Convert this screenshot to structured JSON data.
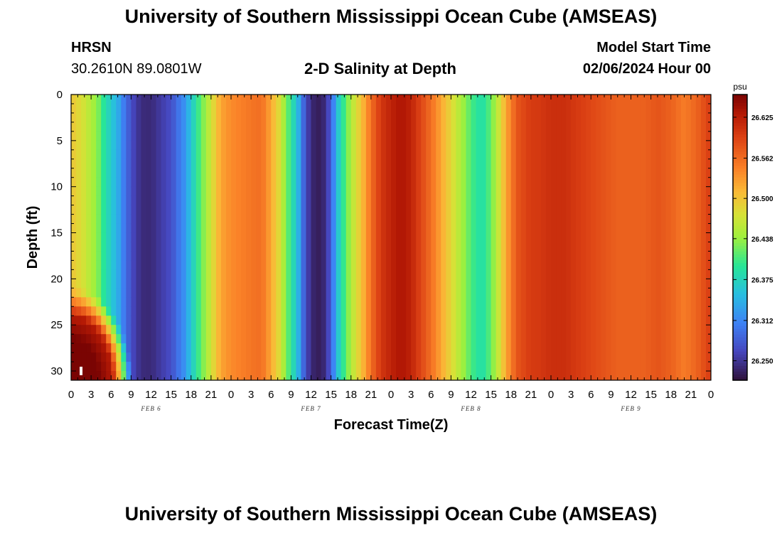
{
  "header": {
    "title": "University of Southern Mississippi Ocean Cube (AMSEAS)",
    "station_name": "HRSN",
    "station_coords": "30.2610N  89.0801W",
    "plot_title": "2-D Salinity at Depth",
    "start_label": "Model Start Time",
    "start_value": "02/06/2024 Hour 00"
  },
  "footer": {
    "title": "University of Southern Mississippi Ocean Cube (AMSEAS)"
  },
  "chart_data": {
    "type": "heatmap",
    "title": "2-D Salinity at Depth",
    "xlabel": "Forecast Time(Z)",
    "ylabel": "Depth (ft)",
    "x_ticks": [
      "0",
      "3",
      "6",
      "9",
      "12",
      "15",
      "18",
      "21",
      "0",
      "3",
      "6",
      "9",
      "12",
      "15",
      "18",
      "21",
      "0",
      "3",
      "6",
      "9",
      "12",
      "15",
      "18",
      "21",
      "0",
      "3",
      "6",
      "9",
      "12",
      "15",
      "18",
      "21",
      "0"
    ],
    "date_labels": [
      {
        "label": "FEB 6",
        "hour": 12
      },
      {
        "label": "FEB 7",
        "hour": 36
      },
      {
        "label": "FEB 8",
        "hour": 60
      },
      {
        "label": "FEB 9",
        "hour": 84
      }
    ],
    "xlim": [
      0,
      96
    ],
    "y_ticks": [
      "0",
      "5",
      "10",
      "15",
      "20",
      "25",
      "30"
    ],
    "ylim": [
      0,
      31
    ],
    "colorbar": {
      "unit": "psu",
      "ticks": [
        "26.625",
        "26.562",
        "26.500",
        "26.438",
        "26.375",
        "26.312",
        "26.250"
      ],
      "range": [
        26.22,
        26.66
      ]
    },
    "surface_salinity_series": {
      "hour": [
        0,
        2,
        4,
        5,
        7,
        8,
        9,
        10,
        11,
        12,
        13,
        15,
        17,
        19,
        21,
        22,
        23,
        24,
        26,
        28,
        29,
        30,
        31,
        32,
        34,
        35,
        36,
        37,
        38,
        39,
        40,
        42,
        44,
        45,
        46,
        47,
        48,
        49,
        50,
        51,
        52,
        54,
        56,
        58,
        60,
        61,
        62,
        63,
        64,
        65,
        66,
        67,
        68,
        69,
        70,
        72,
        74,
        76,
        78,
        80,
        82,
        84,
        86,
        88,
        90,
        92,
        94,
        96
      ],
      "psu": [
        26.5,
        26.47,
        26.43,
        26.39,
        26.34,
        26.3,
        26.27,
        26.25,
        26.24,
        26.24,
        26.25,
        26.27,
        26.32,
        26.4,
        26.47,
        26.51,
        26.53,
        26.54,
        26.55,
        26.56,
        26.55,
        26.52,
        26.49,
        26.44,
        26.35,
        26.28,
        26.24,
        26.23,
        26.24,
        26.28,
        26.36,
        26.45,
        26.52,
        26.56,
        26.59,
        26.61,
        26.62,
        26.63,
        26.63,
        26.62,
        26.6,
        26.56,
        26.51,
        26.46,
        26.41,
        26.39,
        26.39,
        26.42,
        26.46,
        26.51,
        26.55,
        26.58,
        26.59,
        26.6,
        26.6,
        26.61,
        26.61,
        26.6,
        26.59,
        26.58,
        26.57,
        26.57,
        26.57,
        26.58,
        26.57,
        26.55,
        26.57,
        26.6
      ]
    },
    "bottom_anomaly": {
      "description": "High-salinity bottom water",
      "hour_range": [
        0,
        9
      ],
      "depth_range_ft": [
        21,
        31
      ],
      "max_psu": 26.66
    }
  }
}
